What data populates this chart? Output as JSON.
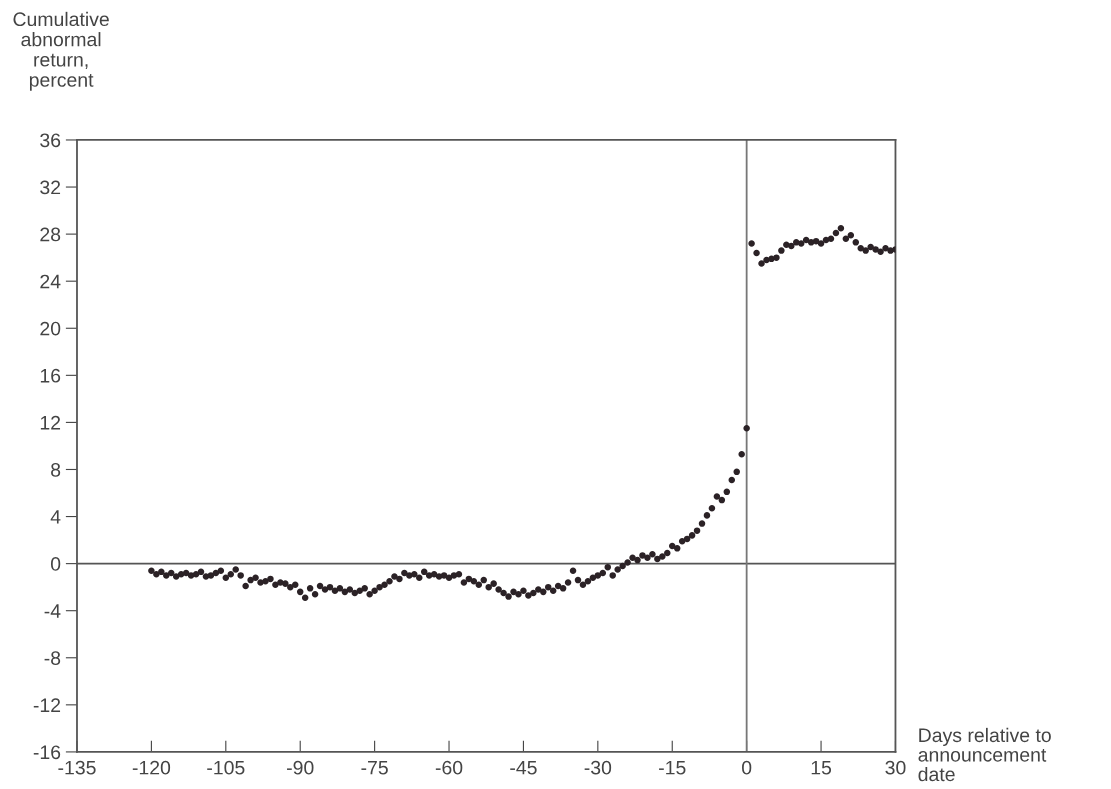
{
  "chart_data": {
    "type": "scatter",
    "ylabel": "Cumulative\nabnormal\nreturn,\npercent",
    "xlabel": "Days relative to\nannouncement\ndate",
    "x": [
      -120,
      -119,
      -118,
      -117,
      -116,
      -115,
      -114,
      -113,
      -112,
      -111,
      -110,
      -109,
      -108,
      -107,
      -106,
      -105,
      -104,
      -103,
      -102,
      -101,
      -100,
      -99,
      -98,
      -97,
      -96,
      -95,
      -94,
      -93,
      -92,
      -91,
      -90,
      -89,
      -88,
      -87,
      -86,
      -85,
      -84,
      -83,
      -82,
      -81,
      -80,
      -79,
      -78,
      -77,
      -76,
      -75,
      -74,
      -73,
      -72,
      -71,
      -70,
      -69,
      -68,
      -67,
      -66,
      -65,
      -64,
      -63,
      -62,
      -61,
      -60,
      -59,
      -58,
      -57,
      -56,
      -55,
      -54,
      -53,
      -52,
      -51,
      -50,
      -49,
      -48,
      -47,
      -46,
      -45,
      -44,
      -43,
      -42,
      -41,
      -40,
      -39,
      -38,
      -37,
      -36,
      -35,
      -34,
      -33,
      -32,
      -31,
      -30,
      -29,
      -28,
      -27,
      -26,
      -25,
      -24,
      -23,
      -22,
      -21,
      -20,
      -19,
      -18,
      -17,
      -16,
      -15,
      -14,
      -13,
      -12,
      -11,
      -10,
      -9,
      -8,
      -7,
      -6,
      -5,
      -4,
      -3,
      -2,
      -1,
      0,
      1,
      2,
      3,
      4,
      5,
      6,
      7,
      8,
      9,
      10,
      11,
      12,
      13,
      14,
      15,
      16,
      17,
      18,
      19,
      20,
      21,
      22,
      23,
      24,
      25,
      26,
      27,
      28,
      29,
      30
    ],
    "values": [
      -0.6,
      -0.9,
      -0.7,
      -1.0,
      -0.8,
      -1.1,
      -0.9,
      -0.8,
      -1.0,
      -0.9,
      -0.7,
      -1.1,
      -1.0,
      -0.8,
      -0.6,
      -1.2,
      -0.9,
      -0.5,
      -1.0,
      -1.9,
      -1.4,
      -1.2,
      -1.6,
      -1.5,
      -1.3,
      -1.8,
      -1.6,
      -1.7,
      -2.0,
      -1.8,
      -2.4,
      -2.9,
      -2.1,
      -2.6,
      -1.9,
      -2.2,
      -2.0,
      -2.3,
      -2.1,
      -2.4,
      -2.2,
      -2.5,
      -2.3,
      -2.1,
      -2.6,
      -2.3,
      -2.0,
      -1.8,
      -1.5,
      -1.1,
      -1.3,
      -0.8,
      -1.0,
      -0.9,
      -1.2,
      -0.7,
      -1.0,
      -0.9,
      -1.1,
      -1.0,
      -1.2,
      -1.0,
      -0.9,
      -1.6,
      -1.3,
      -1.5,
      -1.8,
      -1.4,
      -2.0,
      -1.7,
      -2.2,
      -2.5,
      -2.8,
      -2.4,
      -2.6,
      -2.3,
      -2.7,
      -2.5,
      -2.2,
      -2.4,
      -2.0,
      -2.3,
      -1.9,
      -2.1,
      -1.6,
      -0.6,
      -1.4,
      -1.8,
      -1.5,
      -1.2,
      -1.0,
      -0.8,
      -0.3,
      -1.0,
      -0.5,
      -0.2,
      0.1,
      0.5,
      0.3,
      0.7,
      0.5,
      0.8,
      0.4,
      0.6,
      0.9,
      1.5,
      1.3,
      1.9,
      2.1,
      2.4,
      2.8,
      3.4,
      4.1,
      4.7,
      5.7,
      5.4,
      6.1,
      7.1,
      7.8,
      9.3,
      11.5,
      27.2,
      26.4,
      25.5,
      25.8,
      25.9,
      26.0,
      26.6,
      27.1,
      27.0,
      27.3,
      27.2,
      27.5,
      27.3,
      27.4,
      27.2,
      27.5,
      27.6,
      28.1,
      28.5,
      27.6,
      27.9,
      27.3,
      26.8,
      26.6,
      26.9,
      26.7,
      26.5,
      26.8,
      26.6,
      26.7
    ],
    "color": "#2b2226",
    "marker": "circle",
    "xlim": [
      -135,
      30
    ],
    "xticks": [
      -135,
      -120,
      -105,
      -90,
      -75,
      -60,
      -45,
      -30,
      -15,
      0,
      15,
      30
    ],
    "ylim": [
      -16,
      36
    ],
    "yticks": [
      -16,
      -12,
      -8,
      -4,
      0,
      4,
      8,
      12,
      16,
      20,
      24,
      28,
      32,
      36
    ],
    "ref_lines": [
      {
        "axis": "y",
        "value": 0,
        "color": "#555555"
      },
      {
        "axis": "x",
        "value": 0,
        "color": "#777777"
      }
    ],
    "grid": false,
    "legend": false
  }
}
